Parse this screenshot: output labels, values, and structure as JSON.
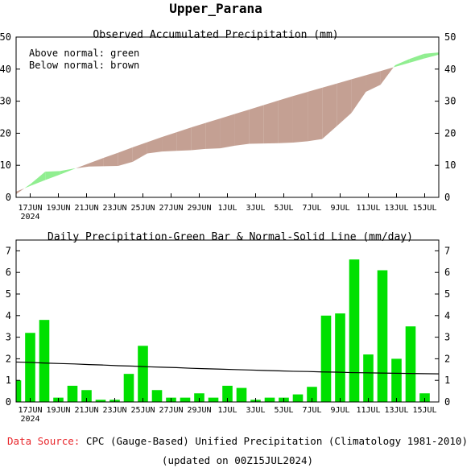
{
  "page_title": "Upper_Parana",
  "chart_data": [
    {
      "type": "area",
      "title": "Observed Accumulated Precipitation (mm)",
      "legend_lines": [
        "Above normal: green",
        "Below normal: brown"
      ],
      "colors": {
        "above": "#90ee90",
        "below": "#c4a093"
      },
      "ylim": [
        0,
        50
      ],
      "yticks": [
        0,
        10,
        20,
        30,
        40,
        50
      ],
      "xlim": [
        0,
        30
      ],
      "xticks": [
        1,
        3,
        5,
        7,
        9,
        11,
        13,
        15,
        17,
        19,
        21,
        23,
        25,
        27,
        29
      ],
      "xtick_labels": [
        "17JUN",
        "19JUN",
        "21JUN",
        "23JUN",
        "25JUN",
        "27JUN",
        "29JUN",
        "1JUL",
        "3JUL",
        "5JUL",
        "7JUL",
        "9JUL",
        "11JUL",
        "13JUL",
        "15JUL"
      ],
      "year_label": "2024",
      "x": [
        "16JUN",
        "17JUN",
        "18JUN",
        "19JUN",
        "20JUN",
        "21JUN",
        "22JUN",
        "23JUN",
        "24JUN",
        "25JUN",
        "26JUN",
        "27JUN",
        "28JUN",
        "29JUN",
        "30JUN",
        "1JUL",
        "2JUL",
        "3JUL",
        "4JUL",
        "5JUL",
        "6JUL",
        "7JUL",
        "8JUL",
        "9JUL",
        "10JUL",
        "11JUL",
        "12JUL",
        "13JUL",
        "14JUL",
        "15JUL"
      ],
      "observed": [
        1.0,
        4.2,
        8.0,
        8.2,
        9.0,
        9.6,
        9.7,
        9.8,
        11.1,
        13.7,
        14.3,
        14.5,
        14.7,
        15.1,
        15.3,
        16.1,
        16.7,
        16.8,
        16.9,
        17.1,
        17.5,
        18.2,
        22.2,
        26.3,
        32.9,
        35.1,
        41.2,
        43.2,
        44.8,
        45.2
      ],
      "normal": [
        1.8,
        3.6,
        5.4,
        7.1,
        8.9,
        10.6,
        12.3,
        13.9,
        15.6,
        17.2,
        18.8,
        20.3,
        21.8,
        23.2,
        24.6,
        26.0,
        27.4,
        28.8,
        30.2,
        31.6,
        32.9,
        34.2,
        35.5,
        36.8,
        38.1,
        39.4,
        40.7,
        42.0,
        43.3,
        44.5
      ]
    },
    {
      "type": "bar",
      "title": "Daily Precipitation-Green Bar & Normal-Solid Line (mm/day)",
      "colors": {
        "bar": "#00e000",
        "line": "#000000"
      },
      "ylim": [
        0,
        7.5
      ],
      "yticks": [
        0,
        1,
        2,
        3,
        4,
        5,
        6,
        7
      ],
      "categories": [
        "16JUN",
        "17JUN",
        "18JUN",
        "19JUN",
        "20JUN",
        "21JUN",
        "22JUN",
        "23JUN",
        "24JUN",
        "25JUN",
        "26JUN",
        "27JUN",
        "28JUN",
        "29JUN",
        "30JUN",
        "1JUL",
        "2JUL",
        "3JUL",
        "4JUL",
        "5JUL",
        "6JUL",
        "7JUL",
        "8JUL",
        "9JUL",
        "10JUL",
        "11JUL",
        "12JUL",
        "13JUL",
        "14JUL",
        "15JUL"
      ],
      "values": [
        1.0,
        3.2,
        3.8,
        0.2,
        0.75,
        0.55,
        0.1,
        0.1,
        1.3,
        2.6,
        0.55,
        0.2,
        0.2,
        0.4,
        0.2,
        0.75,
        0.65,
        0.1,
        0.2,
        0.2,
        0.35,
        0.7,
        4.0,
        4.1,
        6.6,
        2.2,
        6.1,
        2.0,
        3.5,
        0.4
      ],
      "normal": [
        1.85,
        1.83,
        1.8,
        1.78,
        1.76,
        1.73,
        1.71,
        1.68,
        1.66,
        1.63,
        1.61,
        1.59,
        1.56,
        1.54,
        1.52,
        1.5,
        1.48,
        1.46,
        1.44,
        1.42,
        1.41,
        1.39,
        1.38,
        1.36,
        1.35,
        1.34,
        1.33,
        1.32,
        1.31,
        1.3
      ],
      "xtick_labels": [
        "17JUN",
        "19JUN",
        "21JUN",
        "23JUN",
        "25JUN",
        "27JUN",
        "29JUN",
        "1JUL",
        "3JUL",
        "5JUL",
        "7JUL",
        "9JUL",
        "11JUL",
        "13JUL",
        "15JUL"
      ],
      "year_label": "2024"
    }
  ],
  "footer": {
    "source_label": "Data Source:",
    "source_text": "CPC (Gauge-Based) Unified Precipitation (Climatology 1981-2010)",
    "updated": "(updated on 00Z15JUL2024)"
  }
}
